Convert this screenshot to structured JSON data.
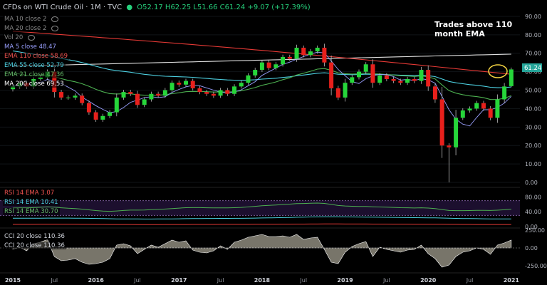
{
  "header": {
    "symbol": "CFDs on WTI Crude Oil · 1M · TVC",
    "open": "O52.17",
    "high": "H62.25",
    "low": "L51.66",
    "close": "C61.24",
    "change": "+9.07 (+17.39%)"
  },
  "indicators": [
    {
      "label": "MA 10 close 2",
      "value": "",
      "color": "#888888"
    },
    {
      "label": "MA 20 close 2",
      "value": "",
      "color": "#888888"
    },
    {
      "label": "Vol 20",
      "value": "",
      "color": "#888888"
    },
    {
      "label": "MA 5 close",
      "value": "48.47",
      "color": "#9aa0ff"
    },
    {
      "label": "EMA 110 close",
      "value": "58.69",
      "color": "#ef5350"
    },
    {
      "label": "EMA 55 close",
      "value": "52.79",
      "color": "#4dd0e1"
    },
    {
      "label": "EMA 21 close",
      "value": "47.36",
      "color": "#66bb6a"
    },
    {
      "label": "MA 200 close",
      "value": "69.53",
      "color": "#ffffff"
    }
  ],
  "annotation": "Trades above 110 month EMA",
  "price_tag": "61.24",
  "rsi_labels": [
    {
      "label": "RSI 14 EMA",
      "value": "3.07",
      "color": "#ef5350"
    },
    {
      "label": "RSI 14 EMA",
      "value": "10.41",
      "color": "#4dd0e1"
    },
    {
      "label": "RSI 14 EMA",
      "value": "30.70",
      "color": "#66bb6a"
    }
  ],
  "cci_labels": [
    {
      "label": "CCI 20 close",
      "value": "110.36"
    },
    {
      "label": "CCI 20 close",
      "value": "110.36"
    }
  ],
  "chart_data": {
    "type": "candlestick",
    "price_ylim": [
      0,
      95
    ],
    "price_ticks": [
      "90.00",
      "80.00",
      "70.00",
      "60.00",
      "50.00",
      "40.00",
      "30.00",
      "20.00",
      "10.00",
      "0.00"
    ],
    "rsi_ticks": [
      "80.00",
      "40.00",
      "0.00"
    ],
    "cci_ticks": [
      "250.00",
      "0.00",
      "-250.00"
    ],
    "x_labels": [
      {
        "t": 0,
        "label": "2015"
      },
      {
        "t": 6,
        "label": "Jul"
      },
      {
        "t": 12,
        "label": "2016"
      },
      {
        "t": 18,
        "label": "Jul"
      },
      {
        "t": 24,
        "label": "2017"
      },
      {
        "t": 30,
        "label": "Jul"
      },
      {
        "t": 36,
        "label": "2018"
      },
      {
        "t": 42,
        "label": "Jul"
      },
      {
        "t": 48,
        "label": "2019"
      },
      {
        "t": 54,
        "label": "Jul"
      },
      {
        "t": 60,
        "label": "2020"
      },
      {
        "t": 66,
        "label": "Jul"
      },
      {
        "t": 72,
        "label": "2021"
      }
    ],
    "closes": [
      52,
      54,
      52,
      56,
      57,
      60,
      49,
      46,
      46,
      47,
      43,
      38,
      34,
      36,
      38,
      46,
      49,
      48,
      42,
      45,
      48,
      47,
      50,
      54,
      53,
      55,
      51,
      49,
      48,
      47,
      50,
      48,
      52,
      54,
      58,
      61,
      65,
      62,
      64,
      68,
      67,
      73,
      69,
      71,
      73,
      65,
      51,
      46,
      54,
      57,
      60,
      64,
      54,
      58,
      56,
      55,
      54,
      56,
      55,
      61,
      52,
      45,
      20,
      19,
      35,
      39,
      40,
      43,
      40,
      35,
      45,
      52,
      61
    ],
    "last_open": 52.17,
    "last_high": 62.25,
    "last_low": 51.66,
    "last_close": 61.24,
    "ema110_start": 82,
    "ema110_end": 58.69,
    "ma200_start": 63,
    "ma200_end": 69.53,
    "cci_values": [
      -20,
      10,
      -40,
      60,
      80,
      120,
      -120,
      -180,
      -170,
      -150,
      -200,
      -230,
      -220,
      -200,
      -150,
      40,
      60,
      30,
      -80,
      -20,
      40,
      10,
      60,
      110,
      80,
      100,
      -30,
      -60,
      -70,
      -40,
      30,
      -20,
      80,
      110,
      150,
      170,
      190,
      160,
      160,
      170,
      150,
      190,
      120,
      140,
      150,
      -20,
      -200,
      -220,
      -60,
      20,
      60,
      90,
      -120,
      10,
      -20,
      -40,
      -60,
      -30,
      -20,
      40,
      -80,
      -150,
      -270,
      -240,
      -120,
      -60,
      -40,
      0,
      -20,
      -90,
      40,
      70,
      110.36
    ]
  }
}
